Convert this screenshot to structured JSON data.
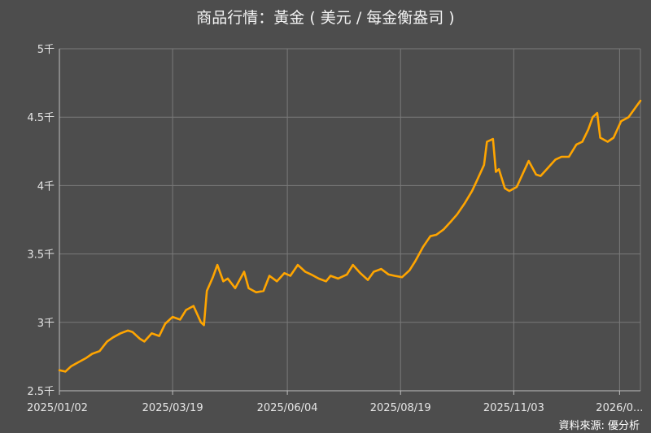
{
  "chart_data": {
    "type": "line",
    "title": "商品行情：黃金 ( 美元 / 每金衡盎司 )",
    "source": "資料來源: 優分析",
    "colors": {
      "background": "#4d4d4d",
      "line": "#ffa500",
      "grid": "#7a7a7a",
      "text": "#e6e6e6"
    },
    "grid": true,
    "ylim": [
      2500,
      5000
    ],
    "yticks": [
      {
        "value": 2500,
        "label": "2.5千"
      },
      {
        "value": 3000,
        "label": "3千"
      },
      {
        "value": 3500,
        "label": "3.5千"
      },
      {
        "value": 4000,
        "label": "4千"
      },
      {
        "value": 4500,
        "label": "4.5千"
      },
      {
        "value": 5000,
        "label": "5千"
      }
    ],
    "xlim": [
      "2025-01-02",
      "2026-01-27"
    ],
    "xticks": [
      {
        "value": "2025-01-02",
        "label": "2025/01/02"
      },
      {
        "value": "2025-03-19",
        "label": "2025/03/19"
      },
      {
        "value": "2025-06-04",
        "label": "2025/06/04"
      },
      {
        "value": "2025-08-19",
        "label": "2025/08/19"
      },
      {
        "value": "2025-11-03",
        "label": "2025/11/03"
      },
      {
        "value": "2026-01-13",
        "label": "2026/0..."
      }
    ],
    "series": [
      {
        "x": [
          "2025-01-02",
          "2025-01-06",
          "2025-01-10",
          "2025-01-15",
          "2025-01-20",
          "2025-01-24",
          "2025-01-29",
          "2025-02-03",
          "2025-02-07",
          "2025-02-12",
          "2025-02-17",
          "2025-02-20",
          "2025-02-25",
          "2025-02-28",
          "2025-03-05",
          "2025-03-10",
          "2025-03-14",
          "2025-03-19",
          "2025-03-24",
          "2025-03-28",
          "2025-04-02",
          "2025-04-07",
          "2025-04-09",
          "2025-04-11",
          "2025-04-15",
          "2025-04-18",
          "2025-04-22",
          "2025-04-25",
          "2025-04-30",
          "2025-05-06",
          "2025-05-09",
          "2025-05-14",
          "2025-05-19",
          "2025-05-23",
          "2025-05-28",
          "2025-06-02",
          "2025-06-06",
          "2025-06-11",
          "2025-06-16",
          "2025-06-20",
          "2025-06-25",
          "2025-06-30",
          "2025-07-03",
          "2025-07-08",
          "2025-07-14",
          "2025-07-18",
          "2025-07-23",
          "2025-07-28",
          "2025-08-01",
          "2025-08-06",
          "2025-08-11",
          "2025-08-15",
          "2025-08-20",
          "2025-08-25",
          "2025-08-29",
          "2025-09-03",
          "2025-09-08",
          "2025-09-12",
          "2025-09-17",
          "2025-09-22",
          "2025-09-26",
          "2025-10-01",
          "2025-10-06",
          "2025-10-09",
          "2025-10-14",
          "2025-10-16",
          "2025-10-20",
          "2025-10-22",
          "2025-10-24",
          "2025-10-28",
          "2025-10-31",
          "2025-11-05",
          "2025-11-10",
          "2025-11-13",
          "2025-11-18",
          "2025-11-21",
          "2025-11-26",
          "2025-12-01",
          "2025-12-05",
          "2025-12-10",
          "2025-12-15",
          "2025-12-19",
          "2025-12-23",
          "2025-12-26",
          "2025-12-29",
          "2025-12-31",
          "2026-01-05",
          "2026-01-09",
          "2026-01-14",
          "2026-01-19",
          "2026-01-23",
          "2026-01-27"
        ],
        "values": [
          2650,
          2640,
          2680,
          2710,
          2740,
          2770,
          2790,
          2860,
          2890,
          2920,
          2940,
          2930,
          2880,
          2860,
          2920,
          2900,
          2990,
          3040,
          3020,
          3090,
          3120,
          3000,
          2980,
          3230,
          3330,
          3420,
          3300,
          3320,
          3250,
          3370,
          3250,
          3220,
          3230,
          3340,
          3300,
          3360,
          3340,
          3420,
          3370,
          3350,
          3320,
          3300,
          3340,
          3320,
          3350,
          3420,
          3360,
          3310,
          3370,
          3390,
          3350,
          3340,
          3330,
          3380,
          3450,
          3550,
          3630,
          3640,
          3680,
          3740,
          3790,
          3870,
          3960,
          4030,
          4150,
          4320,
          4340,
          4100,
          4120,
          3980,
          3960,
          3990,
          4110,
          4180,
          4080,
          4070,
          4130,
          4190,
          4210,
          4210,
          4300,
          4320,
          4410,
          4500,
          4530,
          4350,
          4320,
          4350,
          4470,
          4500,
          4560,
          4620
        ]
      }
    ]
  }
}
